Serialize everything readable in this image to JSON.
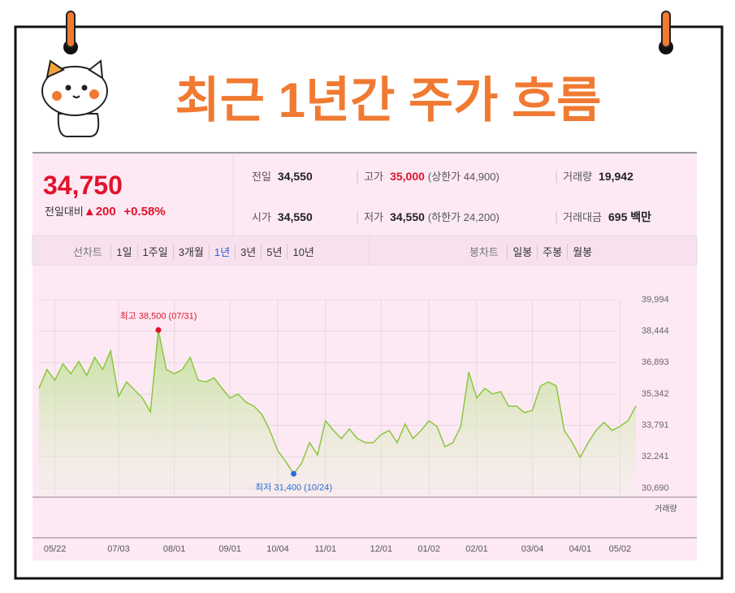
{
  "header": {
    "title": "최근 1년간 주가 흐름"
  },
  "quote": {
    "price": "34,750",
    "change_label": "전일대비",
    "change": "200",
    "change_pct": "+0.58%",
    "table": [
      [
        {
          "label": "전일",
          "value": "34,550"
        },
        {
          "label": "고가",
          "value": "35,000",
          "note": "(상한가 44,900)"
        },
        {
          "label": "거래량",
          "value": "19,942"
        }
      ],
      [
        {
          "label": "시가",
          "value": "34,550"
        },
        {
          "label": "저가",
          "value": "34,550",
          "note": "(하한가 24,200)"
        },
        {
          "label": "거래대금",
          "value": "695 백만"
        }
      ]
    ]
  },
  "tabs": {
    "line_chart": "선차트",
    "periods": [
      "1일",
      "1주일",
      "3개월",
      "1년",
      "3년",
      "5년",
      "10년"
    ],
    "active_period": "1년",
    "candle_chart": "봉차트",
    "candles": [
      "일봉",
      "주봉",
      "월봉"
    ]
  },
  "chart_data": {
    "type": "line",
    "categories": [
      null,
      null,
      "05/22",
      null,
      null,
      null,
      null,
      null,
      null,
      null,
      "07/03",
      null,
      null,
      null,
      null,
      null,
      null,
      "08/01",
      null,
      null,
      null,
      null,
      null,
      null,
      "09/01",
      null,
      null,
      null,
      null,
      null,
      "10/04",
      null,
      null,
      null,
      null,
      null,
      "11/01",
      null,
      null,
      null,
      null,
      null,
      null,
      "12/01",
      null,
      null,
      null,
      null,
      null,
      "01/02",
      null,
      null,
      null,
      null,
      null,
      "02/01",
      null,
      null,
      null,
      null,
      null,
      null,
      "03/04",
      null,
      null,
      null,
      null,
      null,
      "04/01",
      null,
      null,
      null,
      null,
      "05/02",
      null,
      null
    ],
    "series": [
      {
        "name": "주가",
        "color": "#8cc63f",
        "values": [
          35620,
          36550,
          36020,
          36830,
          36340,
          36950,
          36260,
          37150,
          36550,
          37470,
          35220,
          35940,
          35540,
          35140,
          34460,
          38500,
          36550,
          36340,
          36550,
          37150,
          36020,
          35940,
          36140,
          35620,
          35140,
          35340,
          34940,
          34740,
          34340,
          33540,
          32540,
          32010,
          31400,
          31930,
          32940,
          32330,
          34020,
          33540,
          33140,
          33620,
          33140,
          32940,
          32940,
          33340,
          33540,
          32940,
          33860,
          33140,
          33540,
          34020,
          33740,
          32740,
          32940,
          33740,
          36420,
          35140,
          35620,
          35340,
          35460,
          34740,
          34740,
          34420,
          34540,
          35740,
          35940,
          35740,
          33540,
          32940,
          32210,
          32940,
          33540,
          33940,
          33540,
          33740,
          34020,
          34750
        ]
      }
    ],
    "ylim": [
      30690,
      39994
    ],
    "yticks": [
      {
        "value": 30690,
        "label": "30,690"
      },
      {
        "value": 32241,
        "label": "32,241"
      },
      {
        "value": 33791,
        "label": "33,791"
      },
      {
        "value": 35342,
        "label": "35,342"
      },
      {
        "value": 36893,
        "label": "36,893"
      },
      {
        "value": 38444,
        "label": "38,444"
      },
      {
        "value": 39994,
        "label": "39,994"
      }
    ],
    "high_label": "최고 38,500 (07/31)",
    "low_label": "최저 31,400 (10/24)",
    "volume_label": "거래량",
    "grid": true
  }
}
